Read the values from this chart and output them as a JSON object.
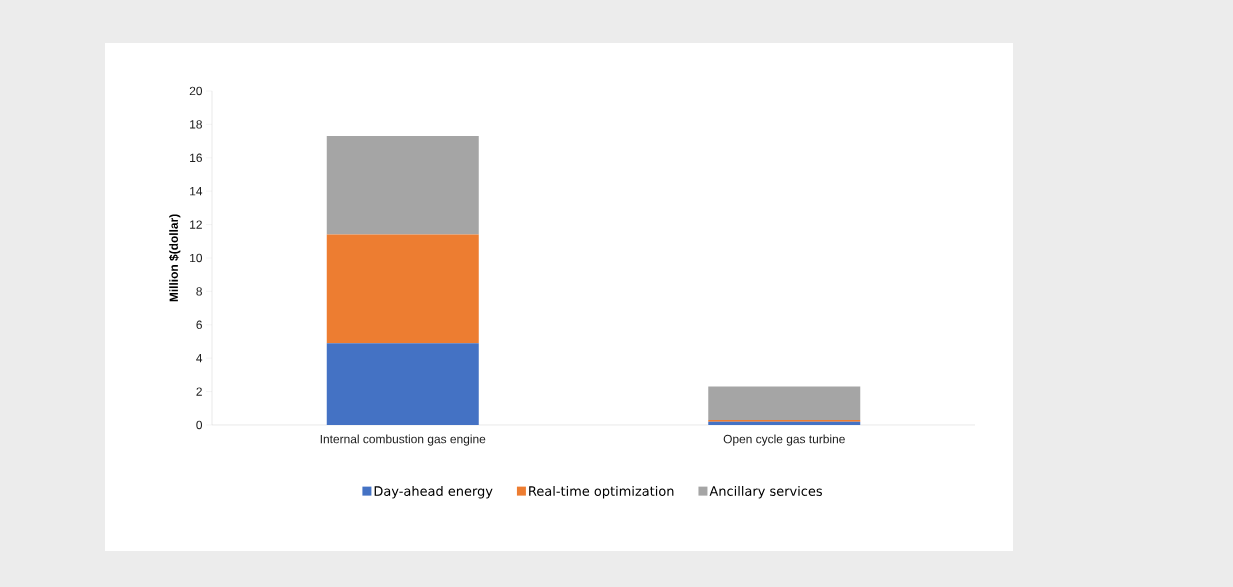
{
  "chart_data": {
    "type": "bar",
    "stacked": true,
    "ylabel": "Million $(dollar)",
    "categories": [
      "Internal combustion gas engine",
      "Open cycle gas turbine"
    ],
    "series": [
      {
        "name": "Day-ahead energy",
        "color": "#4472c4",
        "values": [
          4.9,
          0.2
        ]
      },
      {
        "name": "Real-time optimization",
        "color": "#ed7d31",
        "values": [
          6.5,
          0.1
        ]
      },
      {
        "name": "Ancillary services",
        "color": "#a5a5a5",
        "values": [
          5.9,
          2.0
        ]
      }
    ],
    "ylim": [
      0,
      20
    ],
    "yticks": [
      0,
      2,
      4,
      6,
      8,
      10,
      12,
      14,
      16,
      18,
      20
    ],
    "grid": false,
    "legend": "bottom"
  }
}
